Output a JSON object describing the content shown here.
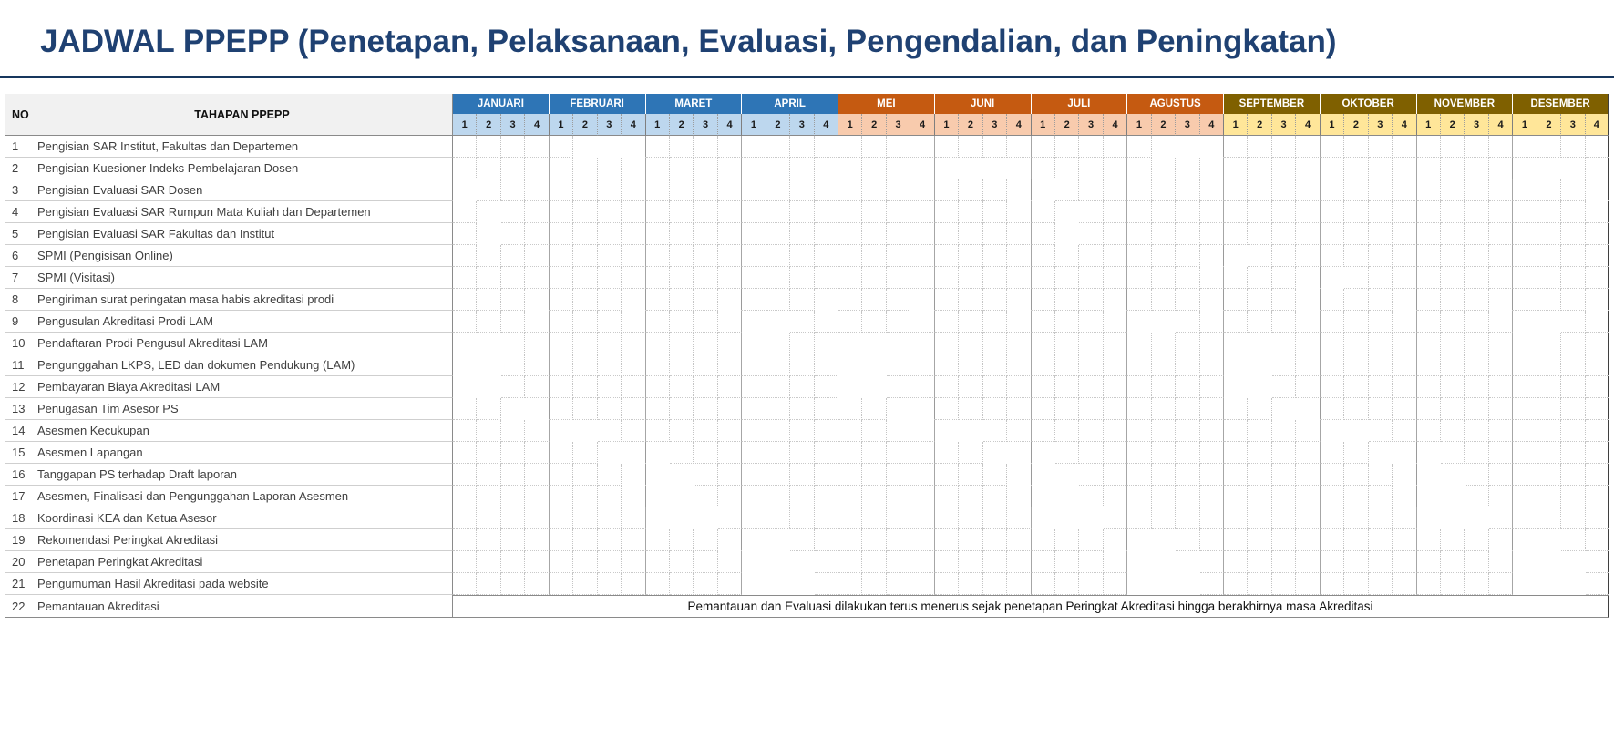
{
  "title": "JADWAL PPEPP (Penetapan, Pelaksanaan, Evaluasi, Pengendalian, dan Peningkatan)",
  "colors": {
    "title_text": "#1F4172",
    "title_rule": "#17365D",
    "month_blue": "#2E75B6",
    "month_orange": "#C55A11",
    "month_gold": "#7F6000",
    "week_blue": "#BDD7EE",
    "week_orange": "#F8CBAD",
    "week_gold": "#FFE699",
    "cell_blue": "#5B9BD5",
    "cell_orange": "#C55A11",
    "cell_gold": "#BF8F00"
  },
  "chart_data": {
    "type": "table",
    "no_header": "NO",
    "task_header": "TAHAPAN PPEPP",
    "week_labels": [
      "1",
      "2",
      "3",
      "4"
    ],
    "months": [
      {
        "label": "JANUARI",
        "season": "blue"
      },
      {
        "label": "FEBRUARI",
        "season": "blue"
      },
      {
        "label": "MARET",
        "season": "blue"
      },
      {
        "label": "APRIL",
        "season": "blue"
      },
      {
        "label": "MEI",
        "season": "orange"
      },
      {
        "label": "JUNI",
        "season": "orange"
      },
      {
        "label": "JULI",
        "season": "orange"
      },
      {
        "label": "AGUSTUS",
        "season": "orange"
      },
      {
        "label": "SEPTEMBER",
        "season": "gold"
      },
      {
        "label": "OKTOBER",
        "season": "gold"
      },
      {
        "label": "NOVEMBER",
        "season": "gold"
      },
      {
        "label": "DESEMBER",
        "season": "gold"
      }
    ],
    "rows": [
      {
        "no": "1",
        "task": "Pengisian SAR Institut, Fakultas dan Departemen",
        "weeks": [
          6,
          7,
          8,
          30,
          31,
          32
        ]
      },
      {
        "no": "2",
        "task": "Pengisian Kuesioner Indeks Pembelajaran Dosen",
        "weeks": [
          21,
          22,
          23,
          44,
          45,
          46
        ]
      },
      {
        "no": "3",
        "task": "Pengisian Evaluasi SAR Dosen",
        "weeks": [
          1,
          24,
          25,
          48
        ]
      },
      {
        "no": "4",
        "task": "Pengisian Evaluasi SAR Rumpun Mata Kuliah dan Departemen",
        "weeks": [
          2,
          26
        ]
      },
      {
        "no": "5",
        "task": "Pengisian Evaluasi SAR Fakultas dan Institut",
        "weeks": [
          2,
          26
        ]
      },
      {
        "no": "6",
        "task": "SPMI (Pengisisan Online)",
        "weeks": [
          32,
          33
        ]
      },
      {
        "no": "7",
        "task": "SPMI (Visitasi)",
        "weeks": [
          36,
          37
        ]
      },
      {
        "no": "8",
        "task": "Pengiriman surat peringatan masa habis akreditasi prodi",
        "weeks": [
          4,
          8,
          12,
          16,
          20,
          24,
          28,
          32,
          36,
          40,
          44,
          48
        ]
      },
      {
        "no": "9",
        "task": "Pengusulan Akreditasi Prodi LAM",
        "weeks": [
          13,
          14,
          29,
          30,
          45,
          46
        ]
      },
      {
        "no": "10",
        "task": "Pendaftaran Prodi Pengusul Akreditasi LAM",
        "weeks": [
          1,
          2,
          17,
          18,
          33,
          34
        ]
      },
      {
        "no": "11",
        "task": "Pengunggahan LKPS, LED dan dokumen Pendukung (LAM)",
        "weeks": [
          1,
          2,
          17,
          18,
          33,
          34
        ]
      },
      {
        "no": "12",
        "task": "Pembayaran Biaya Akreditasi LAM",
        "weeks": [
          1,
          2,
          17,
          18,
          33,
          34
        ]
      },
      {
        "no": "13",
        "task": "Penugasan Tim Asesor PS",
        "weeks": [
          3,
          4,
          19,
          20,
          35,
          36
        ]
      },
      {
        "no": "14",
        "task": "Asesmen Kecukupan",
        "weeks": [
          5,
          6,
          21,
          22,
          37,
          38
        ]
      },
      {
        "no": "15",
        "task": "Asesmen Lapangan",
        "weeks": [
          7,
          8,
          9,
          23,
          24,
          25,
          39,
          40,
          41
        ]
      },
      {
        "no": "16",
        "task": "Tanggapan PS terhadap Draft laporan",
        "weeks": [
          8,
          9,
          10,
          24,
          25,
          26,
          40,
          41,
          42
        ]
      },
      {
        "no": "17",
        "task": "Asesmen, Finalisasi dan Pengunggahan Laporan Asesmen",
        "weeks": [
          8,
          9,
          10,
          24,
          25,
          26,
          40,
          41,
          42
        ]
      },
      {
        "no": "18",
        "task": "Koordinasi KEA dan Ketua Asesor",
        "weeks": [
          9,
          10,
          11,
          25,
          26,
          27,
          41,
          42,
          43
        ]
      },
      {
        "no": "19",
        "task": "Rekomendasi Peringkat Akreditasi",
        "weeks": [
          12,
          13,
          14,
          28,
          29,
          30,
          44,
          45,
          46
        ]
      },
      {
        "no": "20",
        "task": "Penetapan Peringkat Akreditasi",
        "weeks": [
          13,
          14,
          15,
          29,
          30,
          31,
          45,
          46,
          47
        ]
      },
      {
        "no": "21",
        "task": "Pengumuman Hasil Akreditasi pada website",
        "weeks": [
          13,
          14,
          15,
          29,
          30,
          31,
          45,
          46,
          47
        ]
      }
    ],
    "note_row": {
      "no": "22",
      "task": "Pemantauan Akreditasi",
      "note": "Pemantauan dan Evaluasi dilakukan terus menerus sejak penetapan Peringkat Akreditasi hingga berakhirnya masa Akreditasi"
    }
  }
}
